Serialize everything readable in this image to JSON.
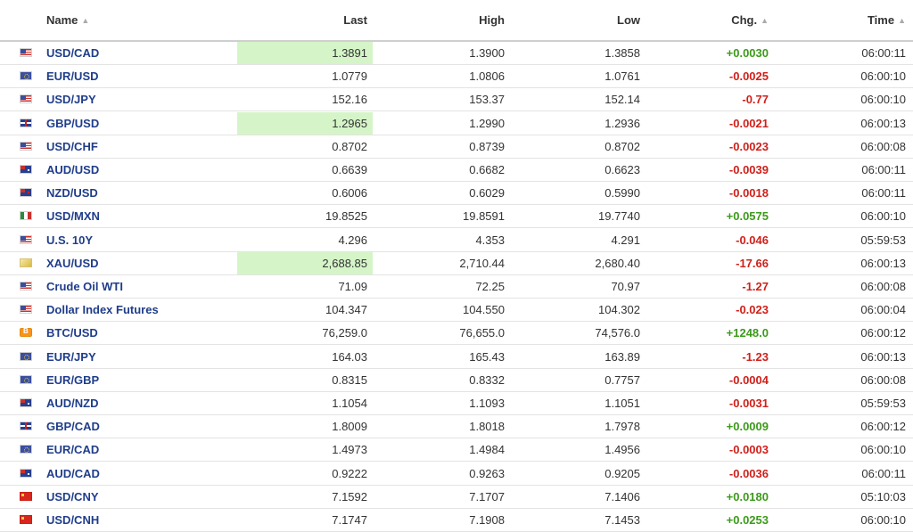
{
  "columns": {
    "name": "Name",
    "last": "Last",
    "high": "High",
    "low": "Low",
    "chg": "Chg.",
    "time": "Time"
  },
  "rows": [
    {
      "name": "USD/CAD",
      "flag": "us-flag-icon",
      "last": "1.3891",
      "high": "1.3900",
      "low": "1.3858",
      "chg": "+0.0030",
      "time": "06:00:11",
      "highlight": true
    },
    {
      "name": "EUR/USD",
      "flag": "eu-flag-icon",
      "last": "1.0779",
      "high": "1.0806",
      "low": "1.0761",
      "chg": "-0.0025",
      "time": "06:00:10",
      "highlight": false
    },
    {
      "name": "USD/JPY",
      "flag": "us-flag-icon",
      "last": "152.16",
      "high": "153.37",
      "low": "152.14",
      "chg": "-0.77",
      "time": "06:00:10",
      "highlight": false
    },
    {
      "name": "GBP/USD",
      "flag": "gb-flag-icon",
      "last": "1.2965",
      "high": "1.2990",
      "low": "1.2936",
      "chg": "-0.0021",
      "time": "06:00:13",
      "highlight": true
    },
    {
      "name": "USD/CHF",
      "flag": "us-flag-icon",
      "last": "0.8702",
      "high": "0.8739",
      "low": "0.8702",
      "chg": "-0.0023",
      "time": "06:00:08",
      "highlight": false
    },
    {
      "name": "AUD/USD",
      "flag": "au-flag-icon",
      "last": "0.6639",
      "high": "0.6682",
      "low": "0.6623",
      "chg": "-0.0039",
      "time": "06:00:11",
      "highlight": false
    },
    {
      "name": "NZD/USD",
      "flag": "nz-flag-icon",
      "last": "0.6006",
      "high": "0.6029",
      "low": "0.5990",
      "chg": "-0.0018",
      "time": "06:00:11",
      "highlight": false
    },
    {
      "name": "USD/MXN",
      "flag": "mx-flag-icon",
      "last": "19.8525",
      "high": "19.8591",
      "low": "19.7740",
      "chg": "+0.0575",
      "time": "06:00:10",
      "highlight": false
    },
    {
      "name": "U.S. 10Y",
      "flag": "us-flag-icon",
      "last": "4.296",
      "high": "4.353",
      "low": "4.291",
      "chg": "-0.046",
      "time": "05:59:53",
      "highlight": false
    },
    {
      "name": "XAU/USD",
      "flag": "gold-icon",
      "last": "2,688.85",
      "high": "2,710.44",
      "low": "2,680.40",
      "chg": "-17.66",
      "time": "06:00:13",
      "highlight": true
    },
    {
      "name": "Crude Oil WTI",
      "flag": "us-flag-icon",
      "last": "71.09",
      "high": "72.25",
      "low": "70.97",
      "chg": "-1.27",
      "time": "06:00:08",
      "highlight": false
    },
    {
      "name": "Dollar Index Futures",
      "flag": "us-flag-icon",
      "last": "104.347",
      "high": "104.550",
      "low": "104.302",
      "chg": "-0.023",
      "time": "06:00:04",
      "highlight": false
    },
    {
      "name": "BTC/USD",
      "flag": "btc-icon",
      "last": "76,259.0",
      "high": "76,655.0",
      "low": "74,576.0",
      "chg": "+1248.0",
      "time": "06:00:12",
      "highlight": false
    },
    {
      "name": "EUR/JPY",
      "flag": "eu-flag-icon",
      "last": "164.03",
      "high": "165.43",
      "low": "163.89",
      "chg": "-1.23",
      "time": "06:00:13",
      "highlight": false
    },
    {
      "name": "EUR/GBP",
      "flag": "eu-flag-icon",
      "last": "0.8315",
      "high": "0.8332",
      "low": "0.7757",
      "chg": "-0.0004",
      "time": "06:00:08",
      "highlight": false
    },
    {
      "name": "AUD/NZD",
      "flag": "au-flag-icon",
      "last": "1.1054",
      "high": "1.1093",
      "low": "1.1051",
      "chg": "-0.0031",
      "time": "05:59:53",
      "highlight": false
    },
    {
      "name": "GBP/CAD",
      "flag": "gb-flag-icon",
      "last": "1.8009",
      "high": "1.8018",
      "low": "1.7978",
      "chg": "+0.0009",
      "time": "06:00:12",
      "highlight": false
    },
    {
      "name": "EUR/CAD",
      "flag": "eu-flag-icon",
      "last": "1.4973",
      "high": "1.4984",
      "low": "1.4956",
      "chg": "-0.0003",
      "time": "06:00:10",
      "highlight": false
    },
    {
      "name": "AUD/CAD",
      "flag": "au-flag-icon",
      "last": "0.9222",
      "high": "0.9263",
      "low": "0.9205",
      "chg": "-0.0036",
      "time": "06:00:11",
      "highlight": false
    },
    {
      "name": "USD/CNY",
      "flag": "cn-flag-icon",
      "last": "7.1592",
      "high": "7.1707",
      "low": "7.1406",
      "chg": "+0.0180",
      "time": "05:10:03",
      "highlight": false
    },
    {
      "name": "USD/CNH",
      "flag": "cn-flag-icon",
      "last": "7.1747",
      "high": "7.1908",
      "low": "7.1453",
      "chg": "+0.0253",
      "time": "06:00:10",
      "highlight": false
    }
  ]
}
